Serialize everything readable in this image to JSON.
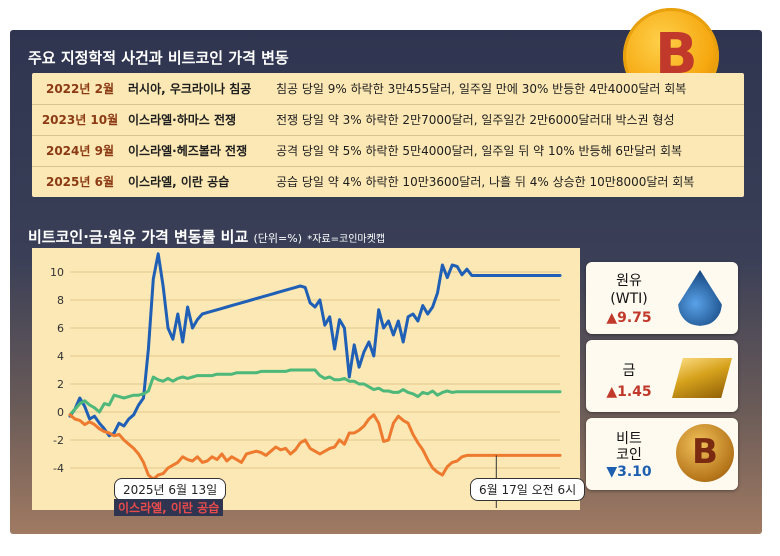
{
  "title1": "주요 지정학적 사건과 비트코인 가격 변동",
  "events": [
    {
      "date": "2022년 2월",
      "name": "러시아, 우크라이나 침공",
      "desc": "침공 당일 9% 하락한 3만455달러, 일주일 만에 30% 반등한 4만4000달러 회복"
    },
    {
      "date": "2023년 10월",
      "name": "이스라엘·하마스 전쟁",
      "desc": "전쟁 당일 약 3% 하락한 2만7000달러, 일주일간 2만6000달러대 박스권 형성"
    },
    {
      "date": "2024년 9월",
      "name": "이스라엘·헤즈볼라 전쟁",
      "desc": "공격 당일 약 5% 하락한 5만4000달러, 일주일 뒤 약 10% 반등해 6만달러 회복"
    },
    {
      "date": "2025년 6월",
      "name": "이스라엘, 이란 공습",
      "desc": "공습 당일 약 4% 하락한 10만3600달러, 나흘 뒤 4% 상승한 10만8000달러 회복"
    }
  ],
  "title2": "비트코인·금·원유 가격 변동률 비교",
  "title2_unit": "(단위=%)",
  "title2_source": "*자료=코인마켓캡",
  "callout_start_date": "2025년 6월 13일",
  "callout_start_event": "이스라엘, 이란 공습",
  "callout_end": "6월 17일 오전 6시",
  "cards": [
    {
      "name1": "원유",
      "name2": "(WTI)",
      "value": "▲9.75",
      "direction": "up",
      "icon": "oil-drop-icon"
    },
    {
      "name1": "금",
      "name2": "",
      "value": "▲1.45",
      "direction": "up",
      "icon": "gold-bar-icon"
    },
    {
      "name1": "비트",
      "name2": "코인",
      "value": "▼3.10",
      "direction": "down",
      "icon": "bitcoin-coin-icon"
    }
  ],
  "chart_data": {
    "type": "line",
    "ylim": [
      -6,
      11
    ],
    "yticks": [
      -4,
      -2,
      0,
      2,
      4,
      6,
      8,
      10
    ],
    "grid": true,
    "x": [
      0,
      1,
      2,
      3,
      4,
      5,
      6,
      7,
      8,
      9,
      10,
      11,
      12,
      13,
      14,
      15,
      16,
      17,
      18,
      19,
      20,
      21,
      22,
      23,
      24,
      25,
      26,
      27,
      28,
      29,
      30,
      31,
      32,
      33,
      34,
      35,
      36,
      37,
      38,
      39,
      40,
      41,
      42,
      43,
      44,
      45,
      46,
      47,
      48,
      49,
      50,
      51,
      52,
      53,
      54,
      55,
      56,
      57,
      58,
      59,
      60,
      61,
      62,
      63,
      64,
      65,
      66,
      67,
      68,
      69,
      70,
      71,
      72,
      73,
      74,
      75,
      76,
      77,
      78,
      79,
      80,
      81,
      82,
      83,
      84,
      85,
      86,
      87,
      88,
      89,
      90,
      91,
      92,
      93,
      94,
      95,
      96,
      97,
      98,
      99,
      100
    ],
    "series": [
      {
        "name": "원유",
        "color": "#1f5fb5",
        "values": [
          -0.3,
          0.2,
          1.0,
          0.4,
          -0.5,
          -0.3,
          -0.8,
          -1.2,
          -1.7,
          -1.5,
          -0.8,
          -1.0,
          -0.5,
          -0.2,
          0.5,
          1.0,
          4.5,
          9.5,
          11.3,
          9.0,
          6.0,
          5.2,
          7.0,
          5.0,
          7.5,
          6.0,
          6.6,
          7.0,
          7.1,
          7.2,
          7.3,
          7.4,
          7.5,
          7.6,
          7.7,
          7.8,
          7.9,
          8.0,
          8.1,
          8.2,
          8.3,
          8.4,
          8.5,
          8.6,
          8.7,
          8.8,
          8.9,
          9.0,
          8.9,
          7.8,
          7.5,
          8.0,
          6.2,
          6.8,
          4.5,
          6.6,
          6.0,
          2.5,
          4.8,
          3.2,
          4.3,
          5.0,
          4.0,
          7.3,
          6.0,
          6.5,
          5.5,
          6.5,
          5.0,
          6.8,
          7.0,
          6.5,
          7.6,
          7.0,
          7.5,
          8.5,
          10.5,
          9.6,
          10.5,
          10.4,
          9.8,
          10.2,
          9.75,
          9.75,
          9.75,
          9.75,
          9.75,
          9.75,
          9.75,
          9.75,
          9.75,
          9.75,
          9.75,
          9.75,
          9.75,
          9.75,
          9.75,
          9.75,
          9.75,
          9.75,
          9.75
        ]
      },
      {
        "name": "금",
        "color": "#4db87a",
        "values": [
          -0.2,
          0.2,
          0.6,
          0.8,
          0.5,
          0.3,
          0.0,
          0.6,
          0.5,
          1.2,
          1.1,
          1.0,
          1.1,
          1.2,
          1.2,
          1.3,
          1.5,
          2.5,
          2.3,
          2.2,
          2.4,
          2.2,
          2.4,
          2.5,
          2.4,
          2.5,
          2.6,
          2.6,
          2.6,
          2.6,
          2.7,
          2.7,
          2.7,
          2.7,
          2.8,
          2.8,
          2.8,
          2.8,
          2.8,
          2.9,
          2.9,
          2.9,
          2.9,
          2.9,
          2.9,
          3.0,
          3.0,
          3.0,
          3.0,
          3.0,
          3.0,
          2.6,
          2.4,
          2.5,
          2.3,
          2.3,
          2.4,
          2.2,
          2.2,
          2.0,
          2.0,
          1.8,
          1.6,
          1.7,
          1.5,
          1.5,
          1.4,
          1.4,
          1.6,
          1.4,
          1.3,
          1.1,
          1.4,
          1.3,
          1.5,
          1.2,
          1.4,
          1.5,
          1.4,
          1.45,
          1.45,
          1.45,
          1.45,
          1.45,
          1.45,
          1.45,
          1.45,
          1.45,
          1.45,
          1.45,
          1.45,
          1.45,
          1.45,
          1.45,
          1.45,
          1.45,
          1.45,
          1.45,
          1.45,
          1.45,
          1.45
        ]
      },
      {
        "name": "비트코인",
        "color": "#ee7a2f",
        "values": [
          -0.2,
          -0.5,
          -0.6,
          -0.9,
          -0.7,
          -0.9,
          -1.2,
          -1.4,
          -1.5,
          -1.7,
          -1.6,
          -2.0,
          -2.3,
          -2.6,
          -3.0,
          -3.6,
          -4.5,
          -4.8,
          -4.5,
          -4.4,
          -4.0,
          -3.8,
          -3.6,
          -3.2,
          -3.4,
          -3.5,
          -3.2,
          -3.6,
          -3.5,
          -3.2,
          -3.4,
          -3.0,
          -3.5,
          -3.2,
          -3.4,
          -3.6,
          -3.0,
          -2.9,
          -2.8,
          -2.9,
          -3.1,
          -2.8,
          -2.5,
          -2.7,
          -2.6,
          -3.0,
          -2.7,
          -2.2,
          -2.0,
          -2.6,
          -2.8,
          -3.0,
          -2.8,
          -2.6,
          -2.5,
          -2.0,
          -2.3,
          -1.5,
          -1.5,
          -1.3,
          -1.0,
          -0.5,
          -0.2,
          -0.8,
          -2.1,
          -2.0,
          -0.8,
          -0.3,
          -0.6,
          -0.8,
          -1.6,
          -2.2,
          -2.7,
          -3.4,
          -4.0,
          -4.3,
          -4.5,
          -3.9,
          -3.6,
          -3.5,
          -3.2,
          -3.1,
          -3.1,
          -3.1,
          -3.1,
          -3.1,
          -3.1,
          -3.1,
          -3.1,
          -3.1,
          -3.1,
          -3.1,
          -3.1,
          -3.1,
          -3.1,
          -3.1,
          -3.1,
          -3.1,
          -3.1,
          -3.1,
          -3.1
        ]
      }
    ]
  }
}
